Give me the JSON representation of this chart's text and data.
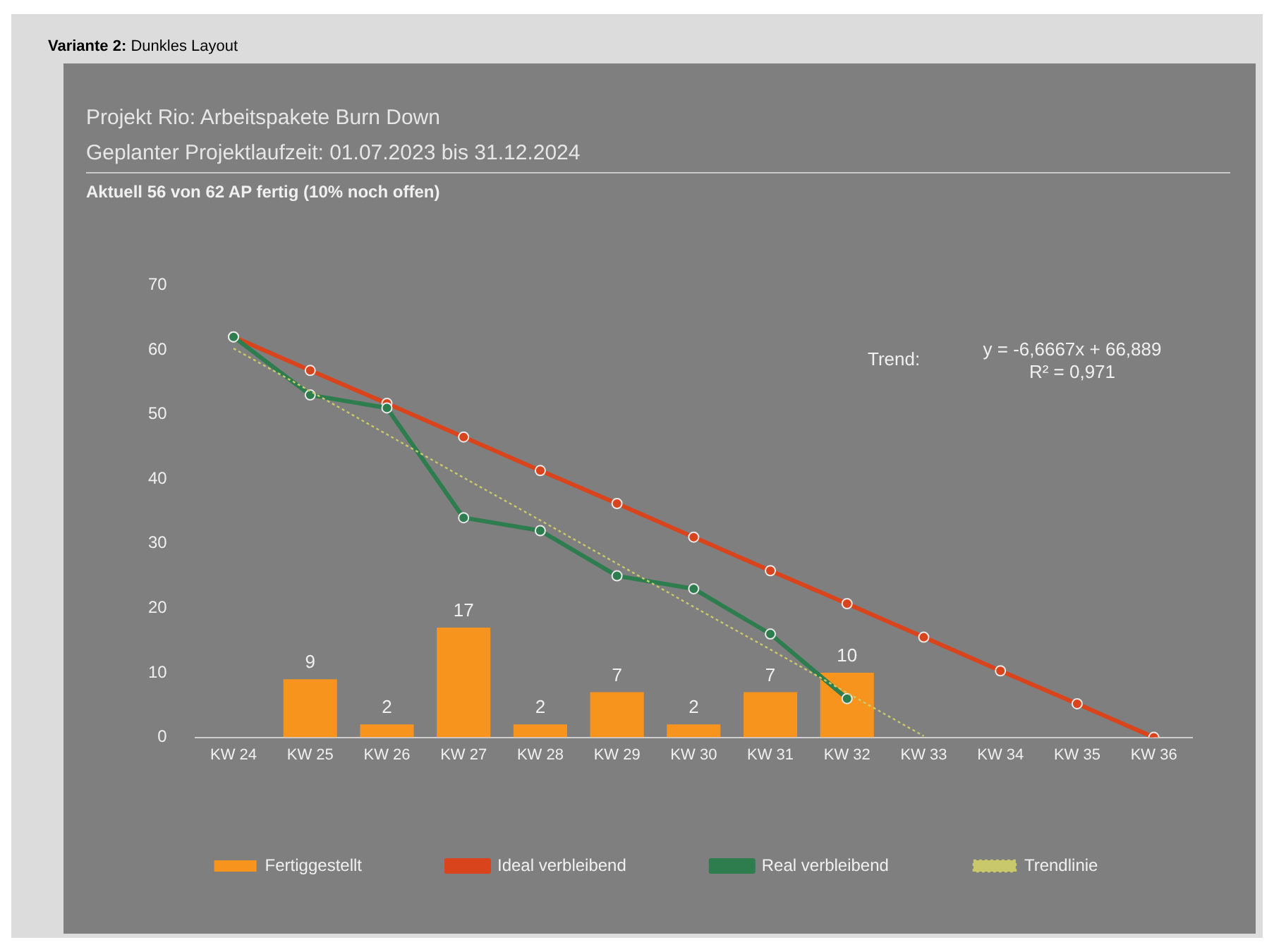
{
  "chart_data": {
    "type": "bar",
    "title": "Projekt Rio: Arbeitspakete Burn Down",
    "subtitle": "Geplanter Projektlaufzeit: 01.07.2023 bis 31.12.2024",
    "annotations": [
      "Variante 2: Dunkles Layout",
      "Aktuell 56 von 62 AP fertig (10% noch offen)",
      "Trend:",
      "y = -6,6667x + 66,889",
      "R² = 0,971"
    ],
    "categories": [
      "KW 24",
      "KW 25",
      "KW 26",
      "KW 27",
      "KW 28",
      "KW 29",
      "KW 30",
      "KW 31",
      "KW 32",
      "KW 33",
      "KW 34",
      "KW 35",
      "KW 36"
    ],
    "series": [
      {
        "name": "Fertiggestellt",
        "color": "#f7941d",
        "values": [
          null,
          9,
          2,
          17,
          2,
          7,
          2,
          7,
          10,
          null,
          null,
          null,
          null
        ],
        "value_labels": [
          null,
          "9",
          "2",
          "17",
          "2",
          "7",
          "2",
          "7",
          "10",
          null,
          null,
          null,
          null
        ]
      },
      {
        "name": "Ideal verbleibend",
        "type": "line",
        "color": "#d9441c",
        "marker": "circle",
        "line_style": "solid",
        "values": [
          62,
          56.8,
          51.7,
          46.5,
          41.3,
          36.2,
          31,
          25.8,
          20.7,
          15.5,
          10.3,
          5.2,
          0
        ]
      },
      {
        "name": "Real verbleibend",
        "type": "line",
        "color": "#2e7d4f",
        "marker": "circle",
        "line_style": "solid",
        "values": [
          62,
          53,
          51,
          34,
          32,
          25,
          23,
          16,
          6,
          null,
          null,
          null,
          null
        ]
      },
      {
        "name": "Trendlinie",
        "type": "line",
        "color": "#c9c86a",
        "marker": "none",
        "line_style": "dotted",
        "values": [
          60.2,
          53.6,
          46.9,
          40.2,
          33.6,
          26.9,
          20.2,
          13.6,
          6.9,
          0.2,
          null,
          null,
          null
        ]
      }
    ],
    "ylim": [
      0,
      70
    ],
    "yticks": [
      0,
      10,
      20,
      30,
      40,
      50,
      60,
      70
    ],
    "grid": false,
    "legend": "bottom"
  }
}
